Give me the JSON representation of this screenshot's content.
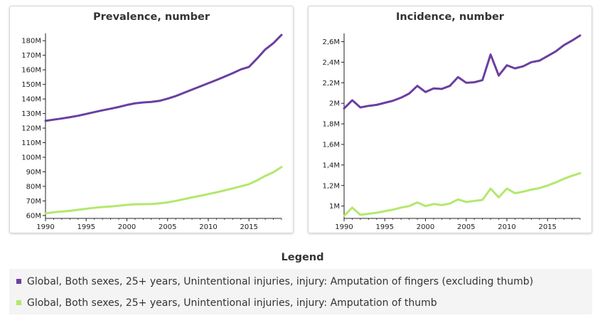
{
  "colors": {
    "series0": "#6b3fa0",
    "series1": "#b3e86c"
  },
  "legend": {
    "title": "Legend",
    "items": [
      "Global, Both sexes, 25+ years, Unintentional injuries, injury: Amputation of fingers (excluding thumb)",
      "Global, Both sexes, 25+ years, Unintentional injuries, injury: Amputation of thumb"
    ]
  },
  "chart_data": [
    {
      "type": "line",
      "title": "Prevalence, number",
      "xlim": [
        1990,
        2019
      ],
      "ylim": [
        58000000,
        185000000
      ],
      "xticks": [
        1990,
        1995,
        2000,
        2005,
        2010,
        2015
      ],
      "xtick_labels": [
        "1990",
        "1995",
        "2000",
        "2005",
        "2010",
        "2015"
      ],
      "yticks": [
        60000000,
        70000000,
        80000000,
        90000000,
        100000000,
        110000000,
        120000000,
        130000000,
        140000000,
        150000000,
        160000000,
        170000000,
        180000000
      ],
      "ytick_labels": [
        "60M",
        "70M",
        "80M",
        "90M",
        "100M",
        "110M",
        "120M",
        "130M",
        "140M",
        "150M",
        "160M",
        "170M",
        "180M"
      ],
      "x": [
        1990,
        1991,
        1992,
        1993,
        1994,
        1995,
        1996,
        1997,
        1998,
        1999,
        2000,
        2001,
        2002,
        2003,
        2004,
        2005,
        2006,
        2007,
        2008,
        2009,
        2010,
        2011,
        2012,
        2013,
        2014,
        2015,
        2016,
        2017,
        2018,
        2019
      ],
      "series": [
        {
          "values": [
            125000000,
            125800000,
            126600000,
            127500000,
            128500000,
            129700000,
            131000000,
            132200000,
            133300000,
            134500000,
            135900000,
            137000000,
            137600000,
            138000000,
            138700000,
            140200000,
            142000000,
            144200000,
            146400000,
            148600000,
            150800000,
            153000000,
            155300000,
            157700000,
            160300000,
            162000000,
            167800000,
            174000000,
            178300000,
            184000000
          ]
        },
        {
          "values": [
            61500000,
            62200000,
            62700000,
            63200000,
            63900000,
            64600000,
            65300000,
            65800000,
            66200000,
            66700000,
            67300000,
            67700000,
            67800000,
            67900000,
            68300000,
            69000000,
            70000000,
            71200000,
            72400000,
            73500000,
            74700000,
            75900000,
            77200000,
            78600000,
            80000000,
            81500000,
            84100000,
            87200000,
            89700000,
            93300000
          ]
        }
      ]
    },
    {
      "type": "line",
      "title": "Incidence, number",
      "xlim": [
        1990,
        2019
      ],
      "ylim": [
        880000,
        2680000
      ],
      "xticks": [
        1990,
        1995,
        2000,
        2005,
        2010,
        2015
      ],
      "xtick_labels": [
        "1990",
        "1995",
        "2000",
        "2005",
        "2010",
        "2015"
      ],
      "yticks": [
        1000000,
        1200000,
        1400000,
        1600000,
        1800000,
        2000000,
        2200000,
        2400000,
        2600000
      ],
      "ytick_labels": [
        "1M",
        "1,2M",
        "1,4M",
        "1,6M",
        "1,8M",
        "2M",
        "2,2M",
        "2,4M",
        "2,6M"
      ],
      "x": [
        1990,
        1991,
        1992,
        1993,
        1994,
        1995,
        1996,
        1997,
        1998,
        1999,
        2000,
        2001,
        2002,
        2003,
        2004,
        2005,
        2006,
        2007,
        2008,
        2009,
        2010,
        2011,
        2012,
        2013,
        2014,
        2015,
        2016,
        2017,
        2018,
        2019
      ],
      "series": [
        {
          "values": [
            1950000,
            2030000,
            1960000,
            1975000,
            1985000,
            2005000,
            2025000,
            2055000,
            2095000,
            2170000,
            2110000,
            2145000,
            2140000,
            2170000,
            2255000,
            2200000,
            2205000,
            2225000,
            2475000,
            2270000,
            2370000,
            2340000,
            2360000,
            2400000,
            2415000,
            2460000,
            2505000,
            2565000,
            2610000,
            2660000
          ]
        },
        {
          "values": [
            905000,
            985000,
            915000,
            925000,
            935000,
            950000,
            965000,
            985000,
            1000000,
            1035000,
            1000000,
            1020000,
            1010000,
            1025000,
            1065000,
            1040000,
            1050000,
            1060000,
            1170000,
            1085000,
            1170000,
            1125000,
            1140000,
            1160000,
            1175000,
            1200000,
            1230000,
            1265000,
            1295000,
            1320000
          ]
        }
      ]
    }
  ]
}
